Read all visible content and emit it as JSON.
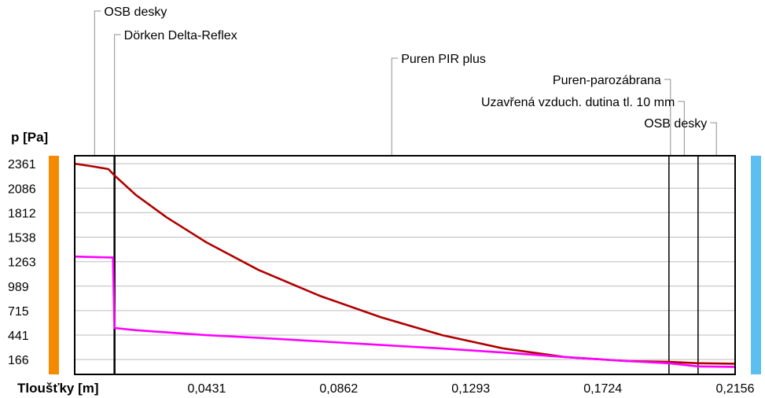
{
  "chart_data": {
    "type": "line",
    "ylabel": "p [Pa]",
    "xlabel": "Tloušťky [m]",
    "xlim": [
      0,
      0.2156
    ],
    "ylim": [
      0,
      2450
    ],
    "y_ticks": [
      "2361",
      "2086",
      "1812",
      "1538",
      "1263",
      "989",
      "715",
      "441",
      "166"
    ],
    "x_ticks": [
      "0,0431",
      "0,0862",
      "0,1293",
      "0,1724",
      "0,2156"
    ],
    "layer_boundaries": [
      0,
      0.013,
      0.194,
      0.2035,
      0.2156
    ],
    "layers": [
      {
        "name": "OSB desky",
        "x": 0.0065
      },
      {
        "name": "Dörken Delta-Reflex",
        "x": 0.013
      },
      {
        "name": "Puren PIR plus",
        "x": 0.1035
      },
      {
        "name": "Puren-parozábrana",
        "x": 0.1945
      },
      {
        "name": "Uzavřená vzduch. dutina tl. 10 mm",
        "x": 0.199
      },
      {
        "name": "OSB desky",
        "x": 0.2095
      }
    ],
    "series": [
      {
        "color": "#b00000",
        "x": [
          0,
          0.006,
          0.011,
          0.013,
          0.02,
          0.03,
          0.043,
          0.06,
          0.08,
          0.1,
          0.12,
          0.14,
          0.16,
          0.18,
          0.194,
          0.2035,
          0.2156
        ],
        "y": [
          2361,
          2330,
          2300,
          2230,
          2010,
          1760,
          1480,
          1170,
          880,
          640,
          440,
          290,
          195,
          150,
          140,
          125,
          120
        ]
      },
      {
        "color": "#ff00ff",
        "x": [
          0,
          0.0125,
          0.013,
          0.02,
          0.043,
          0.06,
          0.08,
          0.1,
          0.12,
          0.14,
          0.16,
          0.18,
          0.194,
          0.2035,
          0.2156
        ],
        "y": [
          1320,
          1310,
          520,
          495,
          440,
          410,
          370,
          330,
          290,
          245,
          195,
          150,
          125,
          90,
          85
        ]
      }
    ],
    "left_bar_color": "#f58a00",
    "right_bar_color": "#5bc0ef"
  }
}
